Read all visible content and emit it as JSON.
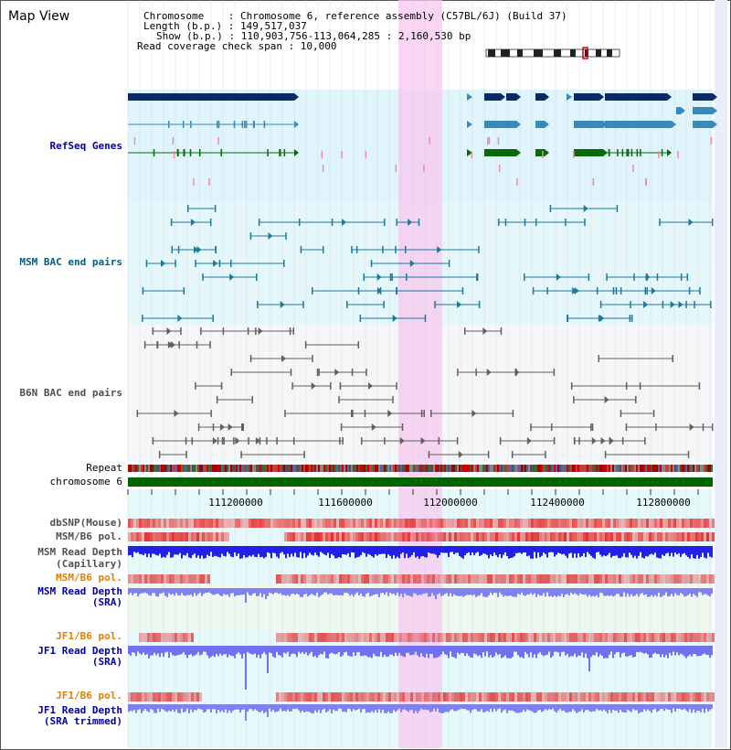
{
  "header": {
    "title": "Map View",
    "chromosome": "Chromosome    : Chromosome 6, reference assembly (C57BL/6J) (Build 37)",
    "length": "Length (b.p.) : 149,517,037",
    "show": "Show (b.p.) : 110,903,756-113,064,285 : 2,160,530 bp",
    "coverage": "Read coverage check span : 10,000"
  },
  "tracks": {
    "refseq": "RefSeq Genes",
    "msm_bac": "MSM BAC end pairs",
    "b6n_bac": "B6N BAC end pairs",
    "repeat": "Repeat",
    "chromosome": "chromosome 6",
    "dbsnp": "dbSNP(Mouse)",
    "msm_b6_pol_1": "MSM/B6 pol.",
    "msm_read_depth_cap_1": "MSM Read Depth",
    "msm_read_depth_cap_2": "(Capillary)",
    "msm_b6_pol_2": "MSM/B6 pol.",
    "msm_read_depth_sra_1": "MSM Read Depth",
    "msm_read_depth_sra_2": "(SRA)",
    "jf1_b6_pol_1": "JF1/B6 pol.",
    "jf1_read_depth_sra_1": "JF1 Read Depth",
    "jf1_read_depth_sra_2": "(SRA)",
    "jf1_b6_pol_2": "JF1/B6 pol.",
    "jf1_read_depth_trim_1": "JF1 Read Depth",
    "jf1_read_depth_trim_2": "(SRA trimmed)"
  },
  "axis": {
    "ticks": [
      "111200000",
      "111600000",
      "112000000",
      "112400000",
      "112800000"
    ]
  },
  "colors": {
    "refseq_label": "#0000a0",
    "msm_label": "#006080",
    "b6n_label": "#505050",
    "pol_label": "#e08000",
    "depth_label": "#0000a0",
    "highlight": "#f8c8f0",
    "panel_bg": "#dff4fb",
    "chromosome_bar": "#006400"
  }
}
